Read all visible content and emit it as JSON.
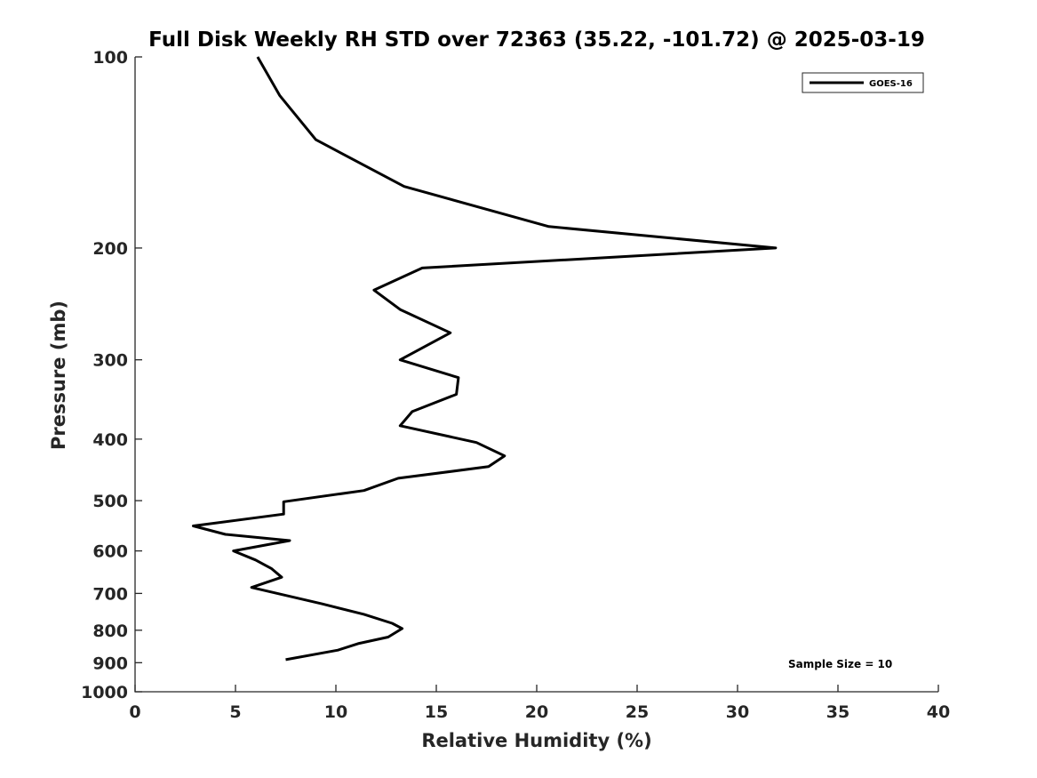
{
  "chart_data": {
    "type": "line",
    "title": "Full Disk Weekly RH STD over 72363 (35.22, -101.72) @ 2025-03-19",
    "xlabel": "Relative Humidity (%)",
    "ylabel": "Pressure (mb)",
    "xlim": [
      0,
      40
    ],
    "ylim": [
      100,
      1000
    ],
    "y_scale": "log",
    "y_reversed": true,
    "grid": false,
    "legend_position": "top-right",
    "x_ticks": [
      0,
      5,
      10,
      15,
      20,
      25,
      30,
      35,
      40
    ],
    "y_ticks": [
      100,
      200,
      300,
      400,
      500,
      600,
      700,
      800,
      900,
      1000
    ],
    "series": [
      {
        "name": "GOES-16",
        "color": "#000000",
        "points": [
          [
            6.1,
            100
          ],
          [
            7.2,
            115
          ],
          [
            9.0,
            135
          ],
          [
            13.4,
            160
          ],
          [
            20.6,
            185
          ],
          [
            31.9,
            200
          ],
          [
            14.3,
            215
          ],
          [
            11.9,
            233
          ],
          [
            13.2,
            250
          ],
          [
            15.7,
            272
          ],
          [
            13.2,
            300
          ],
          [
            16.1,
            320
          ],
          [
            16.0,
            340
          ],
          [
            13.8,
            362
          ],
          [
            13.2,
            381
          ],
          [
            17.0,
            405
          ],
          [
            18.4,
            425
          ],
          [
            17.6,
            442
          ],
          [
            13.1,
            461
          ],
          [
            11.4,
            482
          ],
          [
            7.4,
            502
          ],
          [
            7.4,
            525
          ],
          [
            2.9,
            548
          ],
          [
            4.5,
            565
          ],
          [
            7.7,
            578
          ],
          [
            4.9,
            600
          ],
          [
            6.0,
            620
          ],
          [
            6.8,
            640
          ],
          [
            7.3,
            660
          ],
          [
            5.8,
            685
          ],
          [
            9.3,
            727
          ],
          [
            11.4,
            755
          ],
          [
            12.8,
            780
          ],
          [
            13.3,
            795
          ],
          [
            12.6,
            820
          ],
          [
            11.1,
            840
          ],
          [
            10.1,
            860
          ],
          [
            7.5,
            890
          ]
        ]
      }
    ],
    "annotations": [
      "Sample Size = 10"
    ]
  }
}
